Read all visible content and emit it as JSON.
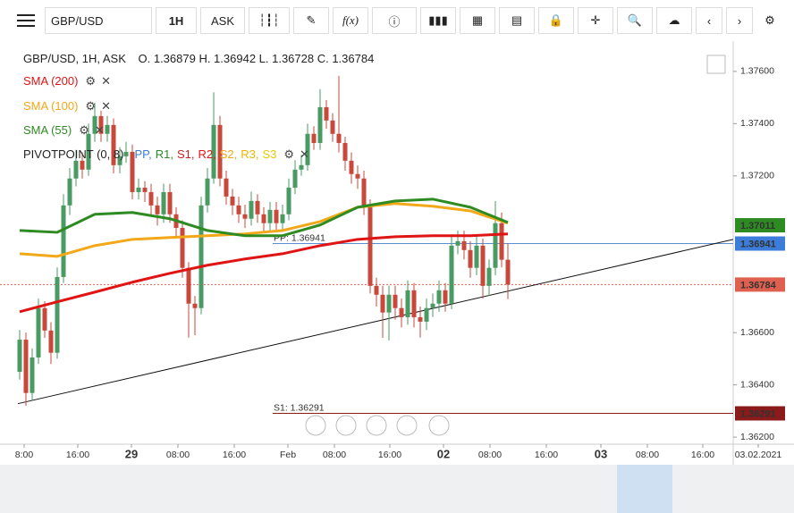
{
  "toolbar": {
    "symbol": "GBP/USD",
    "interval": "1H",
    "side": "ASK"
  },
  "chart_data": {
    "type": "candlestick",
    "title": "GBP/USD, 1H, ASK",
    "ohlc_text": "O. 1.36879 H. 1.36942 L. 1.36728 C. 1.36784",
    "up_color": "#4a9a63",
    "down_color": "#c8493c",
    "ylim": [
      1.36173,
      1.37668
    ],
    "yticks": [
      {
        "value": 1.376,
        "label": "1.37600"
      },
      {
        "value": 1.374,
        "label": "1.37400"
      },
      {
        "value": 1.372,
        "label": "1.37200"
      },
      {
        "value": 1.366,
        "label": "1.36600"
      },
      {
        "value": 1.364,
        "label": "1.36400"
      },
      {
        "value": 1.362,
        "label": "1.36200"
      }
    ],
    "xlabels": [
      "8:00",
      "16:00",
      "29",
      "08:00",
      "16:00",
      "Feb",
      "08:00",
      "16:00",
      "02",
      "08:00",
      "16:00",
      "03",
      "08:00",
      "16:00",
      "03.02.2021"
    ],
    "open": [
      1.3645,
      1.36573,
      1.36369,
      1.36505,
      1.36694,
      1.36608,
      1.36523,
      1.36813,
      1.37087,
      1.3719,
      1.37258,
      1.37224,
      1.37361,
      1.37429,
      1.37361,
      1.37395,
      1.37241,
      1.37275,
      1.37292,
      1.37138,
      1.37155,
      1.37138,
      1.37087,
      1.37053,
      1.37138,
      1.37053,
      1.37001,
      1.36848,
      1.36711,
      1.36694,
      1.37087,
      1.3719,
      1.37395,
      1.3719,
      1.37121,
      1.37087,
      1.37053,
      1.37036,
      1.37104,
      1.37053,
      1.37019,
      1.3707,
      1.37019,
      1.37053,
      1.37155,
      1.37224,
      1.37241,
      1.37361,
      1.37326,
      1.37463,
      1.37412,
      1.37361,
      1.37326,
      1.37258,
      1.37207,
      1.3719,
      1.37087,
      1.36779,
      1.36745,
      1.36677,
      1.36745,
      1.36694,
      1.36659,
      1.36762,
      1.36659,
      1.36642,
      1.36694,
      1.36711,
      1.36762,
      1.36711,
      1.36933,
      1.3695,
      1.36916,
      1.36848,
      1.36933,
      1.36779,
      1.36848,
      1.37019,
      1.36879
    ],
    "high": [
      1.3661,
      1.366,
      1.3654,
      1.3673,
      1.3672,
      1.3664,
      1.3685,
      1.3713,
      1.3723,
      1.373,
      1.3729,
      1.374,
      1.3748,
      1.3745,
      1.3743,
      1.3742,
      1.3731,
      1.3733,
      1.3732,
      1.3719,
      1.3718,
      1.3717,
      1.3712,
      1.3717,
      1.3717,
      1.3708,
      1.3703,
      1.3687,
      1.3674,
      1.3712,
      1.3723,
      1.3752,
      1.3743,
      1.3722,
      1.3715,
      1.3712,
      1.3709,
      1.3714,
      1.3713,
      1.3708,
      1.371,
      1.371,
      1.3709,
      1.3719,
      1.3726,
      1.3728,
      1.374,
      1.3739,
      1.37532,
      1.3749,
      1.3744,
      1.37583,
      1.3735,
      1.3729,
      1.3724,
      1.3722,
      1.3711,
      1.3681,
      1.3678,
      1.3678,
      1.3678,
      1.3673,
      1.368,
      1.3679,
      1.367,
      1.3673,
      1.3675,
      1.368,
      1.3679,
      1.3697,
      1.3699,
      1.3699,
      1.3695,
      1.3697,
      1.3696,
      1.3688,
      1.37104,
      1.3706,
      1.36942
    ],
    "low": [
      1.3642,
      1.3632,
      1.3634,
      1.3648,
      1.3658,
      1.3648,
      1.365,
      1.3679,
      1.3705,
      1.3716,
      1.3719,
      1.372,
      1.3733,
      1.3733,
      1.3733,
      1.3721,
      1.3721,
      1.3725,
      1.3711,
      1.3711,
      1.371,
      1.3705,
      1.3701,
      1.3702,
      1.3702,
      1.3697,
      1.3681,
      1.36581,
      1.3659,
      1.3667,
      1.3706,
      1.3717,
      1.3716,
      1.3709,
      1.3705,
      1.3702,
      1.37,
      1.3701,
      1.3702,
      1.3698,
      1.3699,
      1.3699,
      1.3699,
      1.3703,
      1.3713,
      1.372,
      1.3722,
      1.373,
      1.373,
      1.3738,
      1.3733,
      1.3729,
      1.3722,
      1.3717,
      1.3715,
      1.3705,
      1.3675,
      1.367,
      1.3658,
      1.3657,
      1.3665,
      1.3662,
      1.3663,
      1.3662,
      1.36581,
      1.3661,
      1.3666,
      1.3668,
      1.3668,
      1.3669,
      1.369,
      1.3688,
      1.3681,
      1.3682,
      1.3673,
      1.3674,
      1.3682,
      1.3685,
      1.36728
    ],
    "close": [
      1.36573,
      1.36369,
      1.36505,
      1.36694,
      1.36608,
      1.36523,
      1.36813,
      1.37087,
      1.3719,
      1.37258,
      1.37224,
      1.37361,
      1.37429,
      1.37361,
      1.37395,
      1.37241,
      1.37275,
      1.37292,
      1.37138,
      1.37155,
      1.37138,
      1.37087,
      1.37053,
      1.37138,
      1.37053,
      1.37001,
      1.36848,
      1.36711,
      1.36694,
      1.37087,
      1.3719,
      1.37395,
      1.3719,
      1.37121,
      1.37087,
      1.37053,
      1.37036,
      1.37104,
      1.37053,
      1.37019,
      1.3707,
      1.37019,
      1.37053,
      1.37155,
      1.37224,
      1.37241,
      1.37361,
      1.37326,
      1.37463,
      1.37412,
      1.37361,
      1.37326,
      1.37258,
      1.37207,
      1.3719,
      1.37087,
      1.36779,
      1.36745,
      1.36677,
      1.36745,
      1.36694,
      1.36659,
      1.36762,
      1.36659,
      1.36642,
      1.36694,
      1.36711,
      1.36762,
      1.36711,
      1.36933,
      1.3695,
      1.36916,
      1.36848,
      1.36933,
      1.36779,
      1.36848,
      1.37019,
      1.36879,
      1.36784
    ],
    "series": [
      {
        "name": "SMA (200)",
        "color": "#e01414",
        "x": [
          0,
          6,
          12,
          18,
          24,
          30,
          36,
          42,
          48,
          54,
          60,
          66,
          72,
          78
        ],
        "values": [
          1.3668,
          1.36718,
          1.36755,
          1.36793,
          1.36827,
          1.36858,
          1.36882,
          1.36902,
          1.36933,
          1.36957,
          1.36967,
          1.36971,
          1.36971,
          1.36978
        ]
      },
      {
        "name": "SMA (100)",
        "color": "#f2a818",
        "x": [
          0,
          6,
          12,
          18,
          24,
          30,
          36,
          42,
          48,
          54,
          60,
          66,
          72,
          78
        ],
        "values": [
          1.36902,
          1.36892,
          1.36933,
          1.36957,
          1.36964,
          1.36971,
          1.36978,
          1.36991,
          1.37025,
          1.3708,
          1.37094,
          1.37084,
          1.37066,
          1.37019
        ]
      },
      {
        "name": "SMA (55)",
        "color": "#2e8b22",
        "x": [
          0,
          6,
          12,
          18,
          24,
          30,
          36,
          42,
          48,
          54,
          60,
          66,
          72,
          78
        ],
        "values": [
          1.36991,
          1.36984,
          1.37053,
          1.3706,
          1.37036,
          1.36991,
          1.36971,
          1.36971,
          1.37012,
          1.3708,
          1.37104,
          1.37111,
          1.3708,
          1.37022
        ]
      }
    ],
    "pivot": {
      "name": "PIVOTPOINT (0, 8)",
      "levels": [
        {
          "name": "PP,",
          "color": "#3b7dd8"
        },
        {
          "name": "R1,",
          "color": "#2a8a2a"
        },
        {
          "name": "S1,",
          "color": "#c82020"
        },
        {
          "name": "R2,",
          "color": "#e01414"
        },
        {
          "name": "S2,",
          "color": "#f2a818"
        },
        {
          "name": "R3,",
          "color": "#e8b400"
        },
        {
          "name": "S3",
          "color": "#e6c800"
        }
      ]
    },
    "lines": [
      {
        "label": "PP: 1.36941",
        "value": 1.36941,
        "color": "#5b8fd0"
      },
      {
        "label": "S1: 1.36291",
        "value": 1.36291,
        "color": "#8b1a1a"
      }
    ],
    "trendline": [
      1.36328,
      1.36957
    ],
    "price_tags": [
      {
        "label": "1.37011",
        "value": 1.37011,
        "color": "#2e8b22"
      },
      {
        "label": "1.36941",
        "value": 1.36941,
        "color": "#3b7dd8"
      },
      {
        "label": "1.36784",
        "value": 1.36784,
        "color": "#e06050"
      },
      {
        "label": "1.36291",
        "value": 1.36291,
        "color": "#8b1a1a"
      }
    ]
  }
}
